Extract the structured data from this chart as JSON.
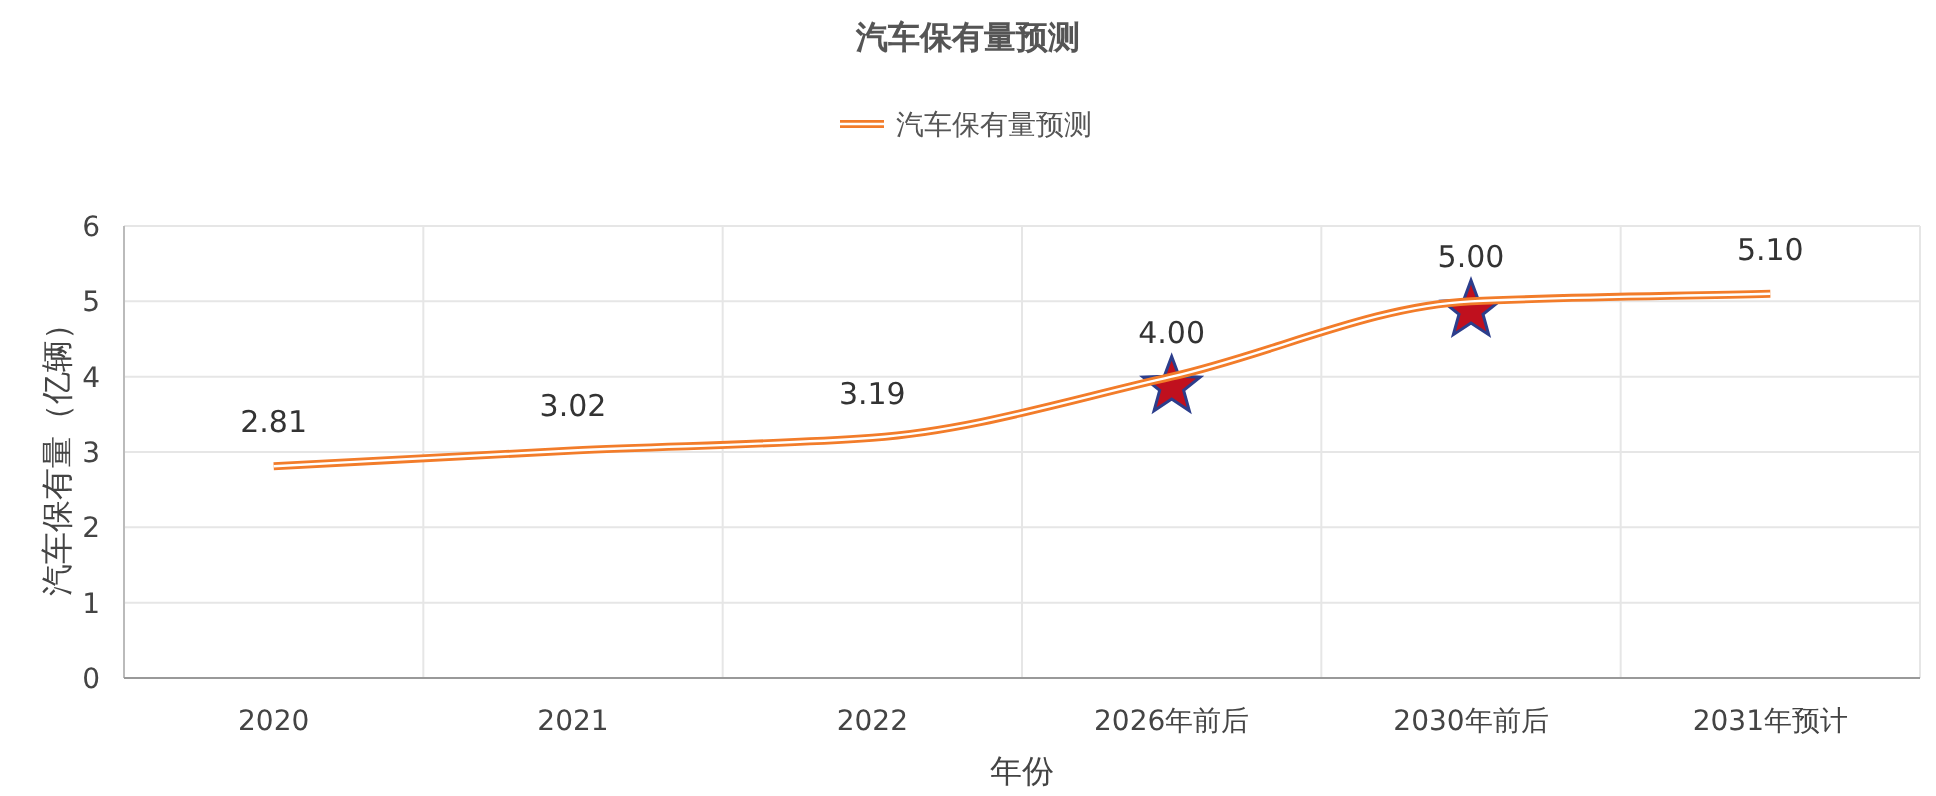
{
  "chart_data": {
    "type": "line",
    "title": "汽车保有量预测",
    "xlabel": "年份",
    "ylabel": "汽车保有量（亿辆）",
    "categories": [
      "2020",
      "2021",
      "2022",
      "2026年前后",
      "2030年前后",
      "2031年预计"
    ],
    "series": [
      {
        "name": "汽车保有量预测",
        "color": "#f27c2a",
        "values": [
          2.81,
          3.02,
          3.19,
          4.0,
          5.0,
          5.1
        ],
        "value_labels": [
          "2.81",
          "3.02",
          "3.19",
          "4.00",
          "5.00",
          "5.10"
        ]
      },
      {
        "type": "scatter",
        "x": [
          "2026年前后",
          "2030年前后"
        ],
        "values": [
          3.87,
          4.88
        ],
        "color": "#c0101e",
        "marker": "star"
      }
    ],
    "ylim": [
      0,
      6
    ],
    "yticks": [
      0,
      1,
      2,
      3,
      4,
      5,
      6
    ],
    "grid": true,
    "legend": "top",
    "marker": "none"
  }
}
